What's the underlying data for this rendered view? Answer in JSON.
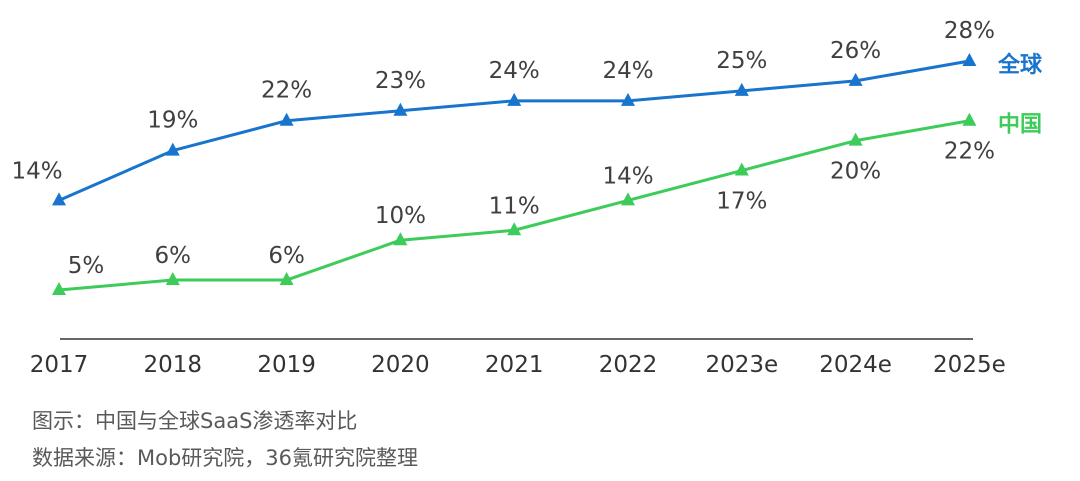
{
  "chart_data": {
    "type": "line",
    "categories": [
      "2017",
      "2018",
      "2019",
      "2020",
      "2021",
      "2022",
      "2023e",
      "2024e",
      "2025e"
    ],
    "series": [
      {
        "name": "全球",
        "color": "#1874CD",
        "values": [
          14,
          19,
          22,
          23,
          24,
          24,
          25,
          26,
          28
        ],
        "labels": [
          "14%",
          "19%",
          "22%",
          "23%",
          "24%",
          "24%",
          "25%",
          "26%",
          "28%"
        ]
      },
      {
        "name": "中国",
        "color": "#3DCB5A",
        "values": [
          5,
          6,
          6,
          10,
          11,
          14,
          17,
          20,
          22
        ],
        "labels": [
          "5%",
          "6%",
          "6%",
          "10%",
          "11%",
          "14%",
          "17%",
          "20%",
          "22%"
        ]
      }
    ],
    "ylim": [
      0,
      28
    ],
    "grid": false,
    "legend": "right"
  },
  "captions": {
    "figure": "图示：中国与全球SaaS渗透率对比",
    "source": "数据来源：Mob研究院，36氪研究院整理"
  }
}
